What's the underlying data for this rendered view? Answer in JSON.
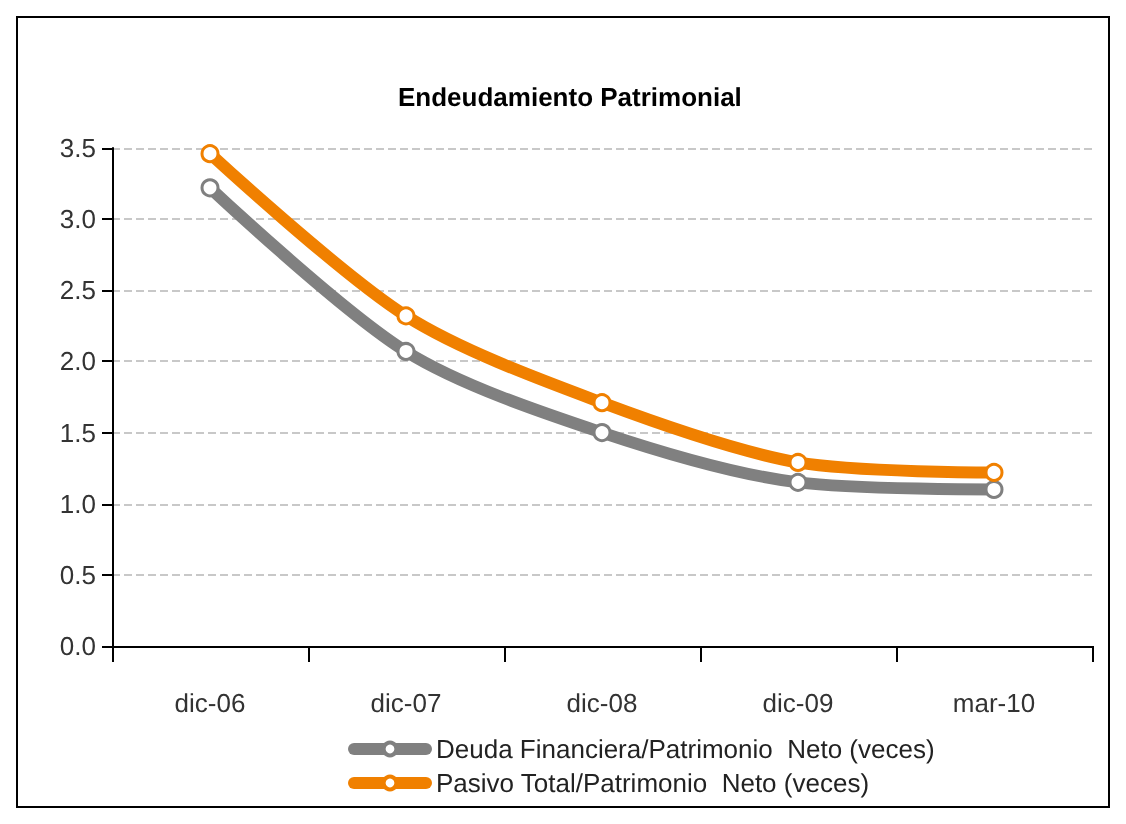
{
  "chart_data": {
    "type": "line",
    "title": "Endeudamiento Patrimonial",
    "categories": [
      "dic-06",
      "dic-07",
      "dic-08",
      "dic-09",
      "mar-10"
    ],
    "series": [
      {
        "name": "Deuda Financiera/Patrimonio  Neto (veces)",
        "color": "#808080",
        "values": [
          3.22,
          2.07,
          1.5,
          1.15,
          1.1
        ]
      },
      {
        "name": "Pasivo Total/Patrimonio  Neto (veces)",
        "color": "#f08000",
        "values": [
          3.46,
          2.32,
          1.71,
          1.29,
          1.22
        ]
      }
    ],
    "ylim": [
      0,
      3.5
    ],
    "yticks": [
      {
        "value": 0,
        "label": "0.0"
      },
      0.5,
      {
        "value": 1,
        "label": "1.0"
      },
      1.5,
      {
        "value": 2,
        "label": "2.0"
      },
      2.5,
      {
        "value": 3,
        "label": "3.0"
      },
      3.5
    ],
    "grid": "y",
    "legend": "bottom",
    "marker": "circle",
    "line_style": "solid"
  }
}
